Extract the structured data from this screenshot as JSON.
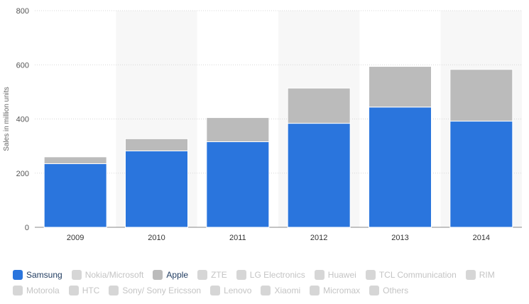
{
  "chart_data": {
    "type": "bar",
    "stacked": true,
    "categories": [
      "2009",
      "2010",
      "2011",
      "2012",
      "2013",
      "2014"
    ],
    "ylabel": "Sales in million units",
    "ylim": [
      0,
      800
    ],
    "yticks": [
      0,
      200,
      400,
      600,
      800
    ],
    "grid": true,
    "legend_position": "bottom",
    "series": [
      {
        "name": "Samsung",
        "color": "#2a75dd",
        "values": [
          235,
          282,
          316,
          384,
          444,
          392
        ],
        "visible": true
      },
      {
        "name": "Apple",
        "color": "#bbbbbb",
        "values": [
          25,
          45,
          89,
          130,
          150,
          191
        ],
        "visible": true
      }
    ]
  },
  "legend": {
    "rows": [
      [
        {
          "label": "Samsung",
          "active": true,
          "color": "#2a75dd"
        },
        {
          "label": "Nokia/Microsoft",
          "active": false
        },
        {
          "label": "Apple",
          "active": true,
          "color": "#bbbbbb"
        },
        {
          "label": "ZTE",
          "active": false
        },
        {
          "label": "LG Electronics",
          "active": false
        },
        {
          "label": "Huawei",
          "active": false
        },
        {
          "label": "TCL Communication",
          "active": false
        },
        {
          "label": "RIM",
          "active": false
        }
      ],
      [
        {
          "label": "Motorola",
          "active": false
        },
        {
          "label": "HTC",
          "active": false
        },
        {
          "label": "Sony/ Sony Ericsson",
          "active": false
        },
        {
          "label": "Lenovo",
          "active": false
        },
        {
          "label": "Xiaomi",
          "active": false
        },
        {
          "label": "Micromax",
          "active": false
        },
        {
          "label": "Others",
          "active": false
        }
      ]
    ]
  }
}
